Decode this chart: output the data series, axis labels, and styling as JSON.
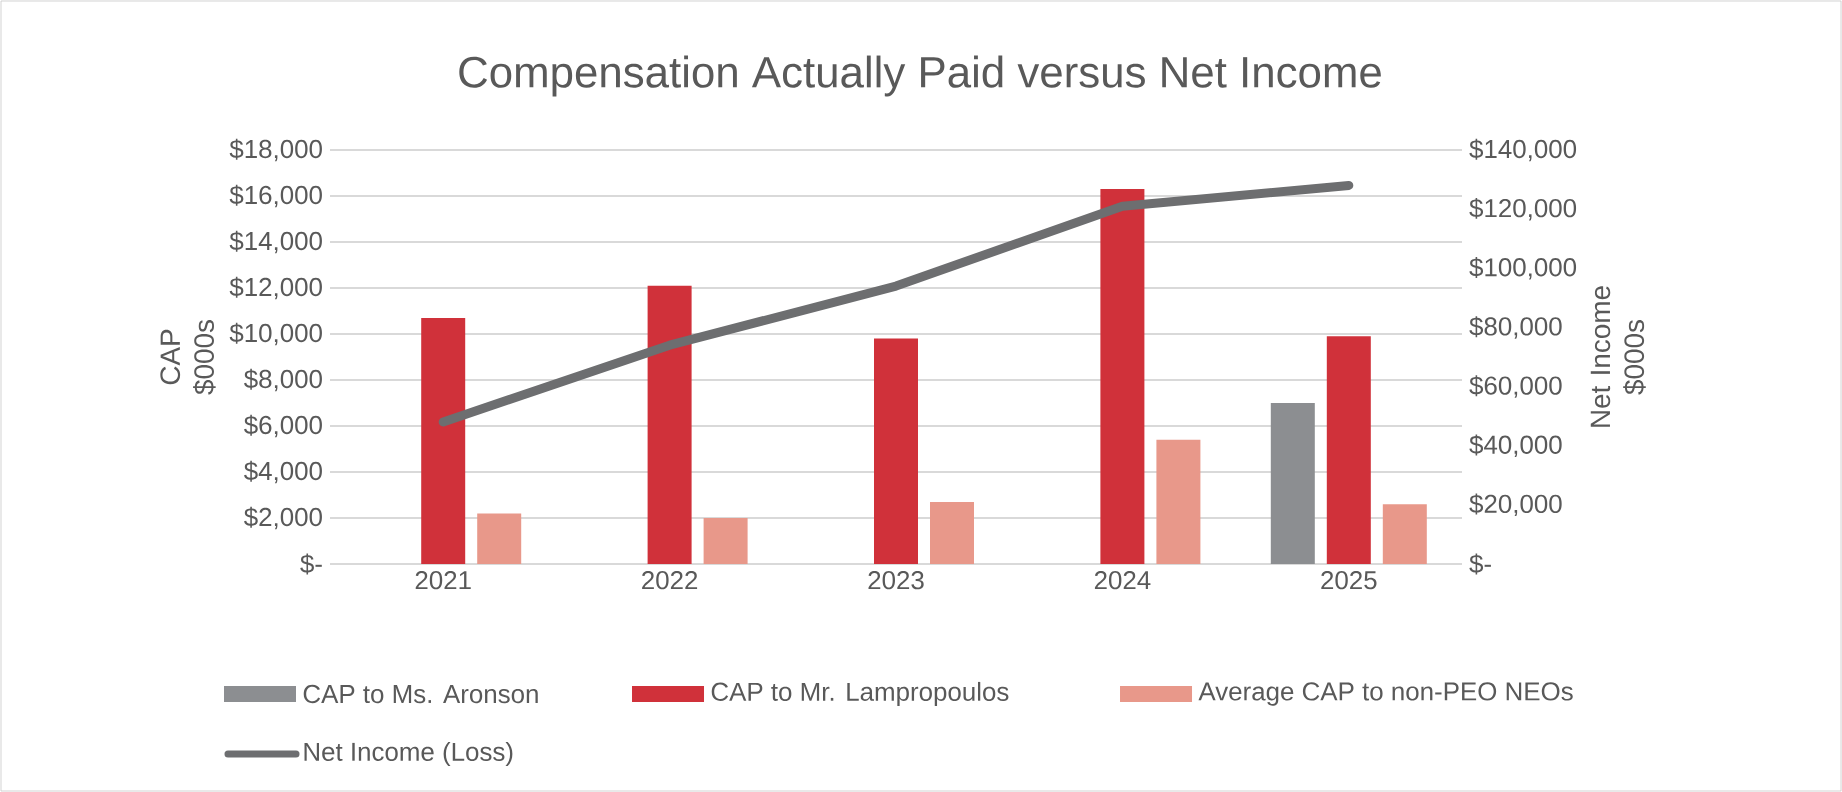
{
  "chart_data": {
    "type": "bar",
    "title": "Compensation Actually Paid versus Net Income",
    "categories": [
      "2021",
      "2022",
      "2023",
      "2024",
      "2025"
    ],
    "series": [
      {
        "name": "CAP to Ms. Aronson",
        "color": "#8c8e91",
        "values": [
          null,
          null,
          null,
          null,
          7000
        ]
      },
      {
        "name": "CAP to Mr. Lampropoulos",
        "color": "#d0313a",
        "values": [
          10700,
          12100,
          9800,
          16300,
          9900
        ]
      },
      {
        "name": "Average CAP to non-PEO NEOs",
        "color": "#e8988a",
        "values": [
          2200,
          2000,
          2700,
          5400,
          2600
        ]
      },
      {
        "name": "Net Income (Loss)",
        "type": "line",
        "axis": "y2",
        "color": "#6d6e70",
        "values": [
          48000,
          74000,
          94000,
          121000,
          128000
        ]
      }
    ],
    "ylabel": "CAP $000s",
    "y2label": "Net Income $000s",
    "ylim": [
      0,
      18000
    ],
    "yticks": [
      {
        "value": 0,
        "label": "$-"
      },
      {
        "value": 2000,
        "label": "$2,000"
      },
      {
        "value": 4000,
        "label": "$4,000"
      },
      {
        "value": 6000,
        "label": "$6,000"
      },
      {
        "value": 8000,
        "label": "$8,000"
      },
      {
        "value": 10000,
        "label": "$10,000"
      },
      {
        "value": 12000,
        "label": "$12,000"
      },
      {
        "value": 14000,
        "label": "$14,000"
      },
      {
        "value": 16000,
        "label": "$16,000"
      },
      {
        "value": 18000,
        "label": "$18,000"
      }
    ],
    "y2lim": [
      0,
      140000
    ],
    "y2ticks": [
      {
        "value": 0,
        "label": "$-"
      },
      {
        "value": 20000,
        "label": "$20,000"
      },
      {
        "value": 40000,
        "label": "$40,000"
      },
      {
        "value": 60000,
        "label": "$60,000"
      },
      {
        "value": 80000,
        "label": "$80,000"
      },
      {
        "value": 100000,
        "label": "$100,000"
      },
      {
        "value": 120000,
        "label": "$120,000"
      },
      {
        "value": 140000,
        "label": "$140,000"
      }
    ],
    "grid": "y",
    "legend": "bottom",
    "marker": "none",
    "line_style": "solid"
  }
}
